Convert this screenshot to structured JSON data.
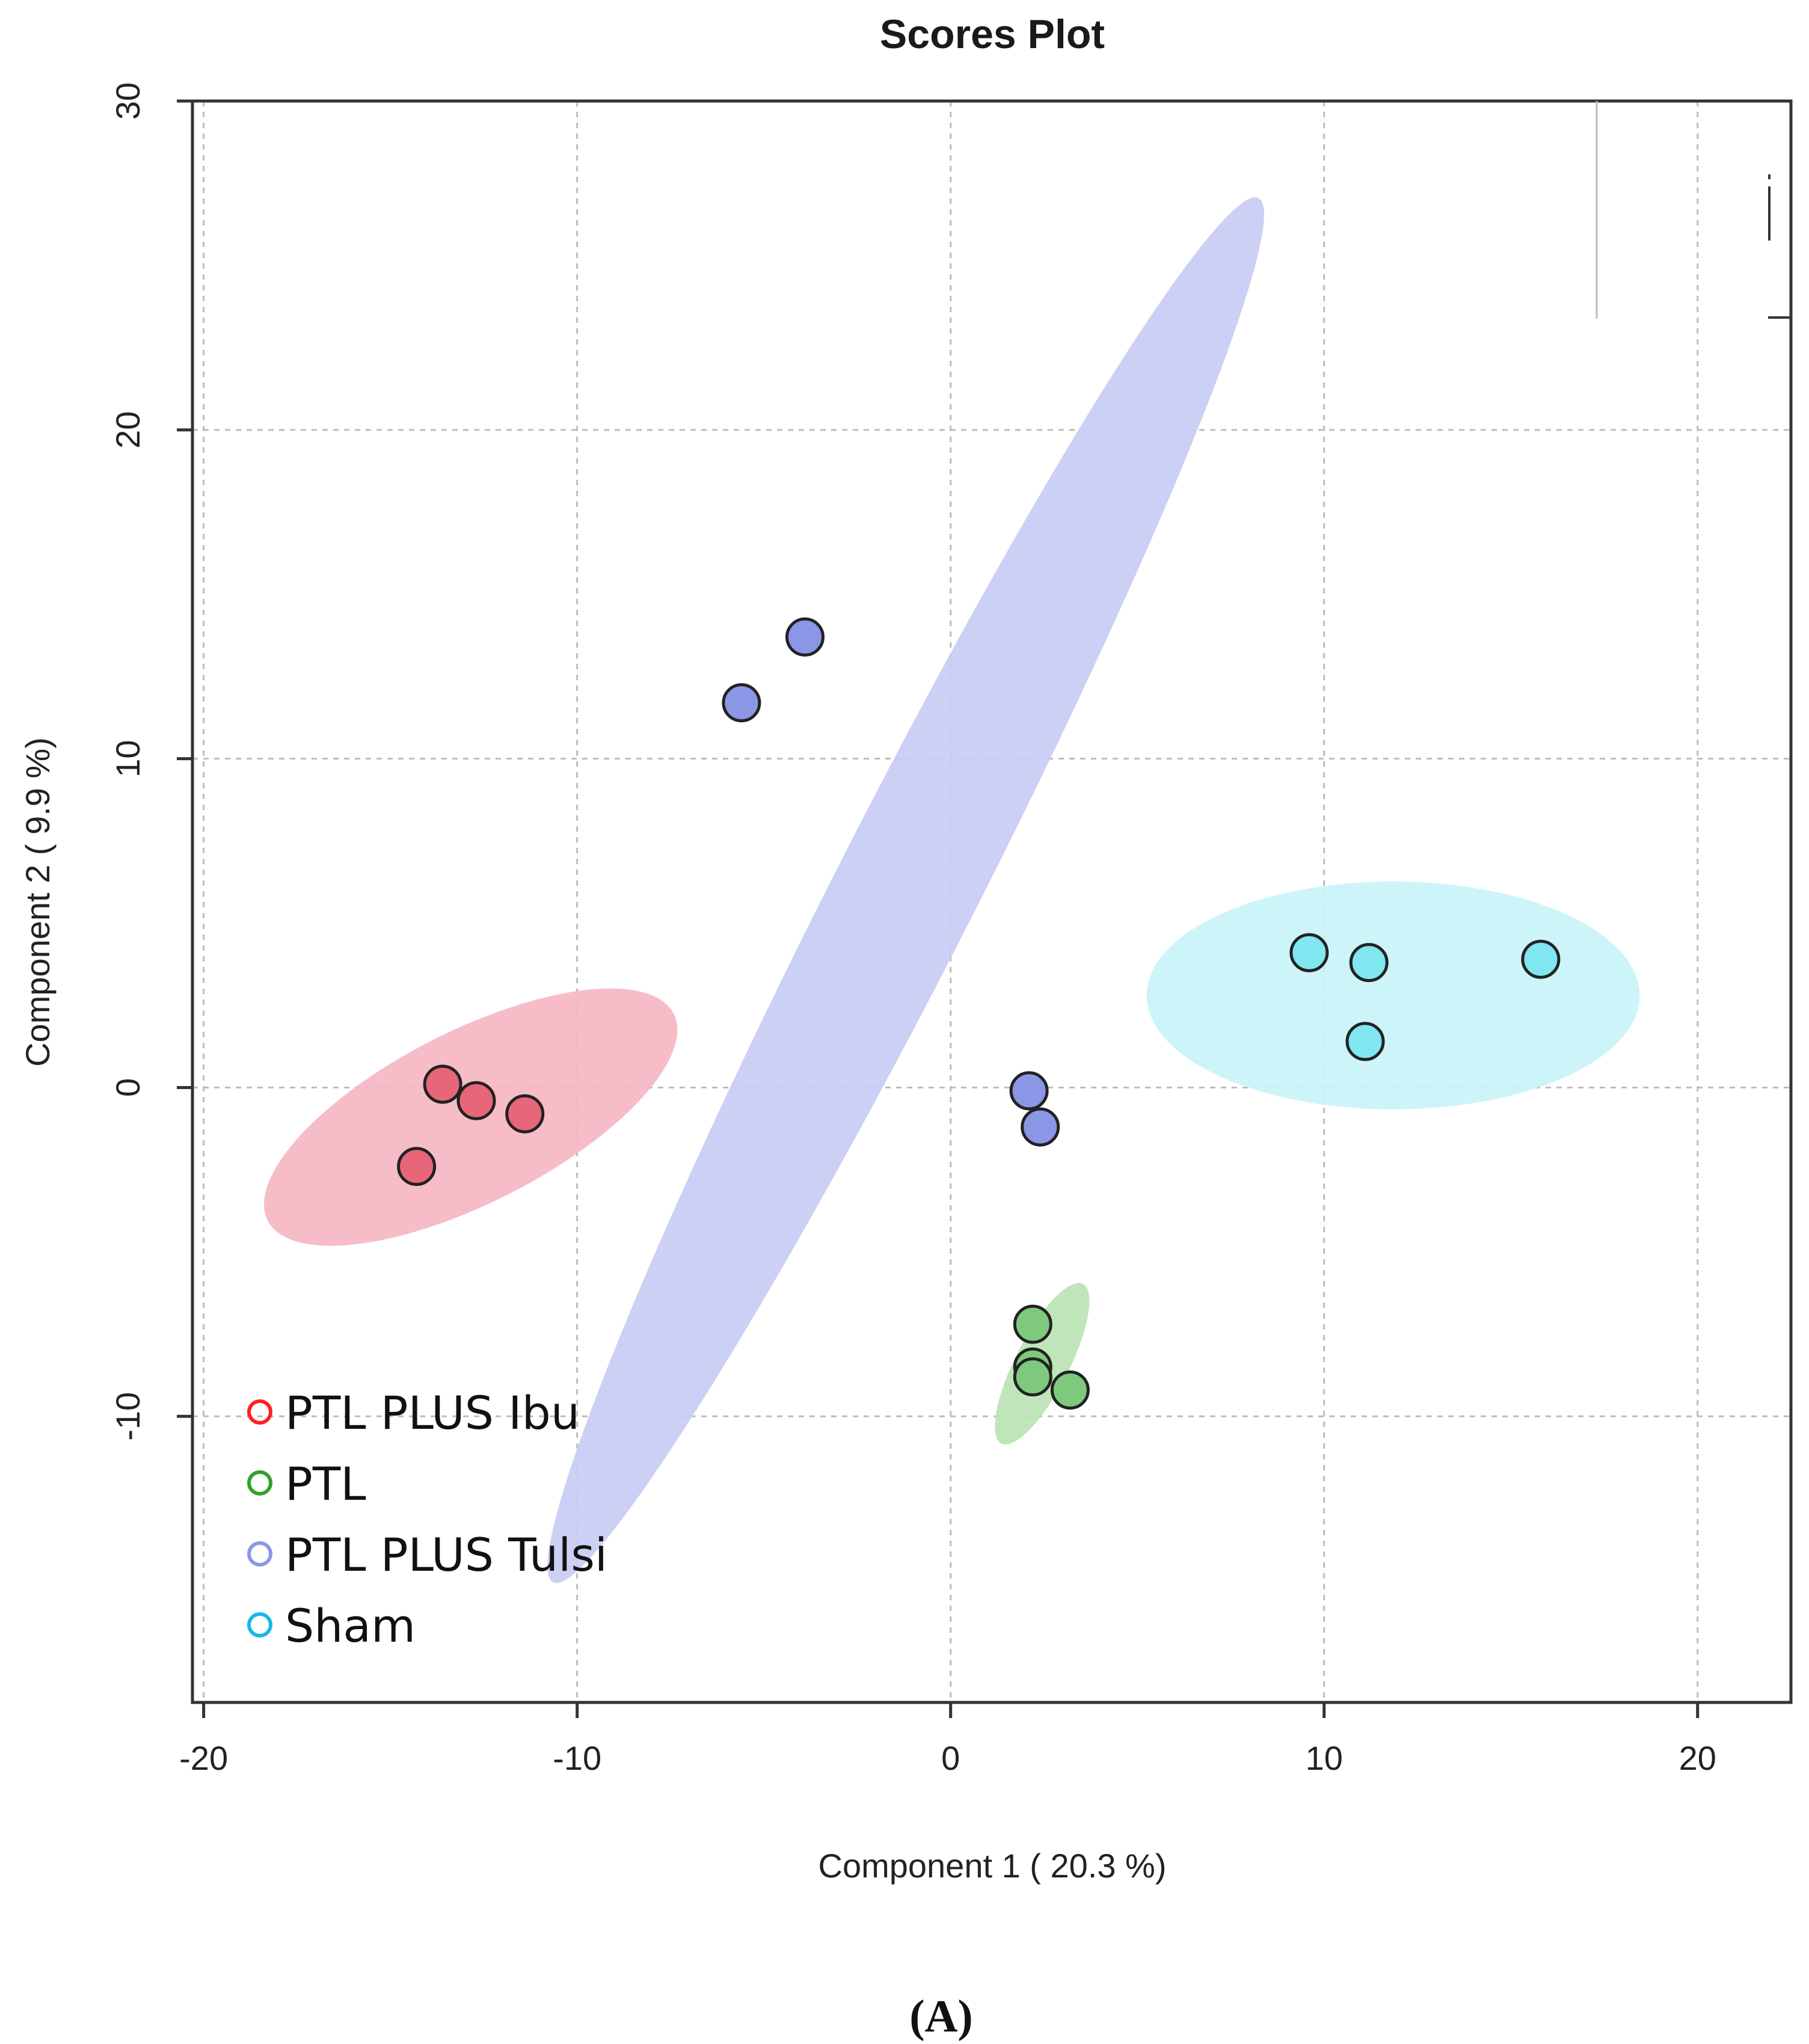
{
  "chart_data": {
    "type": "scatter",
    "title": "Scores Plot",
    "xlabel": "Component 1 ( 20.3 %)",
    "ylabel": "Component 2 ( 9.9 %)",
    "xlim": [
      -20.3,
      22.5
    ],
    "ylim": [
      -18.7,
      30
    ],
    "xticks": [
      -20,
      -10,
      0,
      10,
      20
    ],
    "yticks": [
      -10,
      0,
      10,
      20,
      30
    ],
    "grid": true,
    "legend_position": "bottom-left",
    "series": [
      {
        "name": "PTL PLUS Ibu",
        "color": "#e8667a",
        "legend_color": "#ff2020",
        "ellipse_color": "#f5b6c2",
        "points": [
          [
            -13.6,
            0.1
          ],
          [
            -12.7,
            -0.4
          ],
          [
            -11.4,
            -0.8
          ],
          [
            -14.3,
            -2.4
          ]
        ],
        "ellipse": {
          "cx": -12.85,
          "cy": -0.9,
          "rx": 6.1,
          "ry": 2.3,
          "angle_deg": 27
        }
      },
      {
        "name": "PTL",
        "color": "#7fc97f",
        "legend_color": "#33a02c",
        "ellipse_color": "#b9e2b3",
        "points": [
          [
            2.2,
            -7.2
          ],
          [
            2.2,
            -8.5
          ],
          [
            2.2,
            -8.8
          ],
          [
            3.2,
            -9.2
          ]
        ],
        "ellipse": {
          "cx": 2.45,
          "cy": -8.4,
          "rx": 2.4,
          "ry": 0.72,
          "angle_deg": 63
        }
      },
      {
        "name": "PTL PLUS Tulsi",
        "color": "#8c96e6",
        "legend_color": "#8c96e6",
        "ellipse_color": "#c7cbf3",
        "points": [
          [
            -3.9,
            13.7
          ],
          [
            -5.6,
            11.7
          ],
          [
            2.1,
            -0.1
          ],
          [
            2.4,
            -1.2
          ]
        ],
        "ellipse": {
          "cx": -1.2,
          "cy": 6.0,
          "rx": 20.8,
          "ry": 1.9,
          "angle_deg": 63
        }
      },
      {
        "name": "Sham",
        "color": "#80e6f0",
        "legend_color": "#1ab8e6",
        "ellipse_color": "#c8f3f8",
        "points": [
          [
            9.6,
            4.1
          ],
          [
            11.2,
            3.8
          ],
          [
            15.8,
            3.9
          ],
          [
            11.1,
            1.4
          ]
        ],
        "ellipse": {
          "cx": 11.85,
          "cy": 2.8,
          "rx": 6.6,
          "ry": 3.05,
          "angle_deg": 0
        }
      }
    ]
  },
  "panel_label": "(A)"
}
